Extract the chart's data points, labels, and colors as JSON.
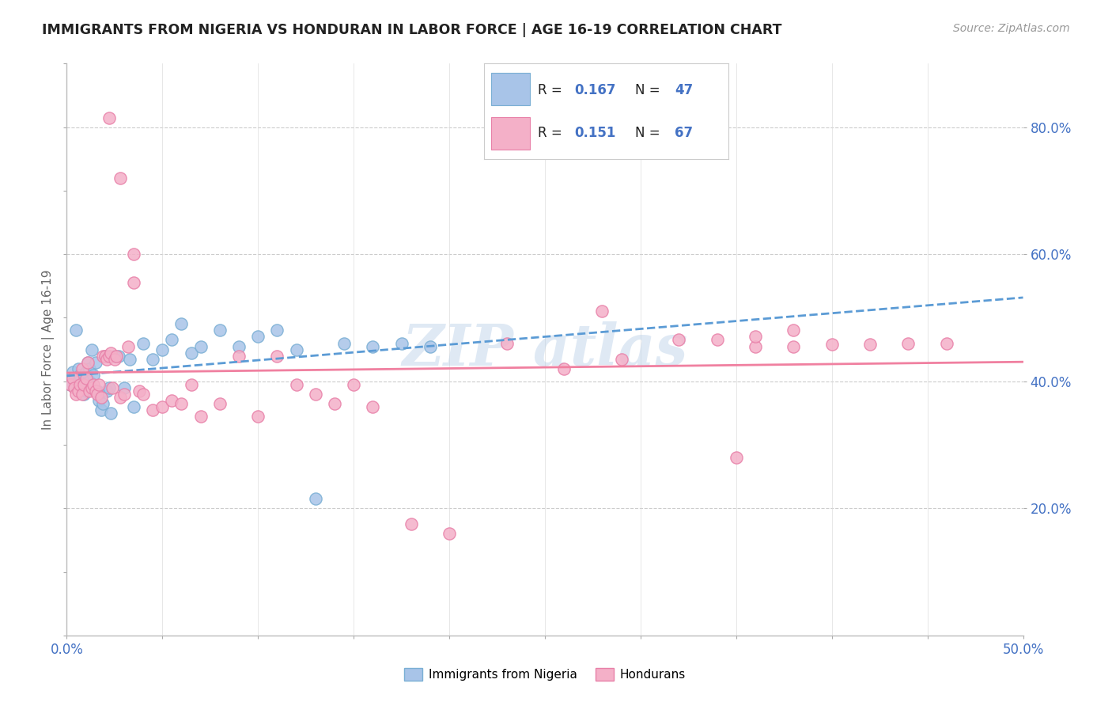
{
  "title": "IMMIGRANTS FROM NIGERIA VS HONDURAN IN LABOR FORCE | AGE 16-19 CORRELATION CHART",
  "source": "Source: ZipAtlas.com",
  "ylabel": "In Labor Force | Age 16-19",
  "right_yticks": [
    0.2,
    0.4,
    0.6,
    0.8
  ],
  "right_yticklabels": [
    "20.0%",
    "40.0%",
    "60.0%",
    "80.0%"
  ],
  "xmin": 0.0,
  "xmax": 0.5,
  "ymin": 0.0,
  "ymax": 0.9,
  "nigeria_color": "#a8c4e8",
  "nigeria_edge_color": "#7aafd4",
  "honduran_color": "#f4b0c8",
  "honduran_edge_color": "#e880a8",
  "nigeria_line_color": "#5b9bd5",
  "honduran_line_color": "#f080a0",
  "legend_color": "#4472c4",
  "nigeria_x": [
    0.002,
    0.003,
    0.004,
    0.005,
    0.006,
    0.006,
    0.007,
    0.008,
    0.009,
    0.01,
    0.01,
    0.011,
    0.012,
    0.012,
    0.013,
    0.014,
    0.015,
    0.016,
    0.017,
    0.018,
    0.019,
    0.02,
    0.021,
    0.022,
    0.023,
    0.025,
    0.027,
    0.03,
    0.033,
    0.035,
    0.04,
    0.045,
    0.05,
    0.055,
    0.06,
    0.065,
    0.07,
    0.08,
    0.09,
    0.1,
    0.11,
    0.12,
    0.13,
    0.145,
    0.16,
    0.175,
    0.19
  ],
  "nigeria_y": [
    0.395,
    0.415,
    0.405,
    0.48,
    0.4,
    0.42,
    0.41,
    0.395,
    0.38,
    0.415,
    0.385,
    0.43,
    0.4,
    0.42,
    0.45,
    0.41,
    0.43,
    0.385,
    0.37,
    0.355,
    0.365,
    0.44,
    0.385,
    0.39,
    0.35,
    0.44,
    0.44,
    0.39,
    0.435,
    0.36,
    0.46,
    0.435,
    0.45,
    0.465,
    0.49,
    0.445,
    0.455,
    0.48,
    0.455,
    0.47,
    0.48,
    0.45,
    0.215,
    0.46,
    0.455,
    0.46,
    0.455
  ],
  "honduran_x": [
    0.002,
    0.003,
    0.004,
    0.005,
    0.006,
    0.007,
    0.008,
    0.008,
    0.009,
    0.01,
    0.011,
    0.012,
    0.013,
    0.014,
    0.015,
    0.016,
    0.017,
    0.018,
    0.019,
    0.02,
    0.021,
    0.022,
    0.023,
    0.024,
    0.025,
    0.026,
    0.028,
    0.03,
    0.032,
    0.035,
    0.038,
    0.04,
    0.045,
    0.05,
    0.055,
    0.06,
    0.065,
    0.07,
    0.08,
    0.09,
    0.1,
    0.11,
    0.12,
    0.13,
    0.14,
    0.15,
    0.16,
    0.18,
    0.2,
    0.23,
    0.26,
    0.29,
    0.32,
    0.34,
    0.36,
    0.38,
    0.4,
    0.42,
    0.44,
    0.46,
    0.022,
    0.028,
    0.035,
    0.35,
    0.36,
    0.28,
    0.38
  ],
  "honduran_y": [
    0.395,
    0.405,
    0.39,
    0.38,
    0.385,
    0.395,
    0.38,
    0.42,
    0.395,
    0.405,
    0.43,
    0.385,
    0.39,
    0.395,
    0.385,
    0.38,
    0.395,
    0.375,
    0.44,
    0.44,
    0.435,
    0.44,
    0.445,
    0.39,
    0.435,
    0.44,
    0.375,
    0.38,
    0.455,
    0.555,
    0.385,
    0.38,
    0.355,
    0.36,
    0.37,
    0.365,
    0.395,
    0.345,
    0.365,
    0.44,
    0.345,
    0.44,
    0.395,
    0.38,
    0.365,
    0.395,
    0.36,
    0.175,
    0.16,
    0.46,
    0.42,
    0.435,
    0.465,
    0.465,
    0.455,
    0.455,
    0.458,
    0.458,
    0.46,
    0.46,
    0.815,
    0.72,
    0.6,
    0.28,
    0.47,
    0.51,
    0.48
  ]
}
